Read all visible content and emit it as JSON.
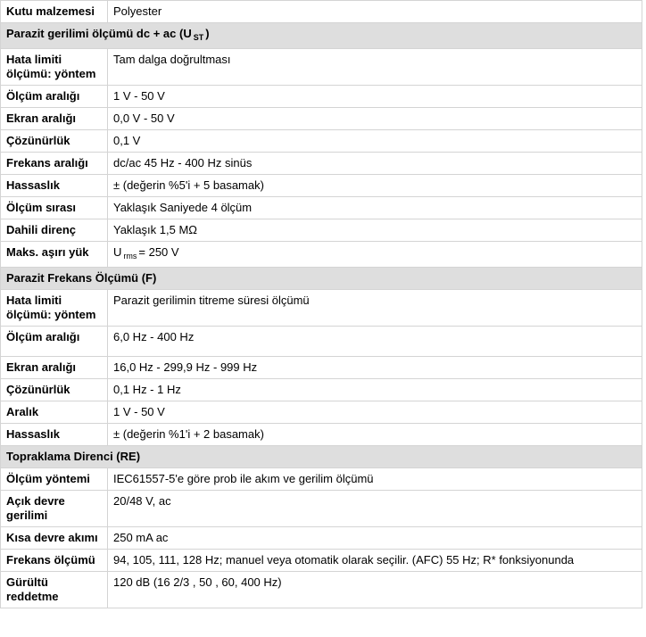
{
  "intro": {
    "label": "Kutu malzemesi",
    "value": "Polyester"
  },
  "sections": [
    {
      "title": {
        "text": "Parazit gerilimi ölçümü dc + ac (U",
        "sub": "ST",
        "tail": ")"
      },
      "rows": [
        {
          "label": "Hata limiti ölçümü: yöntem",
          "value": "Tam dalga doğrultması"
        },
        {
          "label": "Ölçüm aralığı",
          "value": "1 V - 50 V"
        },
        {
          "label": "Ekran aralığı",
          "value": "0,0 V - 50 V"
        },
        {
          "label": "Çözünürlük",
          "value": "0,1 V"
        },
        {
          "label": "Frekans aralığı",
          "value": "dc/ac 45 Hz - 400 Hz sinüs"
        },
        {
          "label": "Hassaslık",
          "value": "± (değerin %5'i + 5 basamak)"
        },
        {
          "label": "Ölçüm sırası",
          "value": "Yaklaşık Saniyede 4 ölçüm"
        },
        {
          "label": "Dahili direnç",
          "value": "Yaklaşık 1,5 MΩ"
        },
        {
          "label": "Maks. aşırı yük",
          "value": {
            "text": "U",
            "sub": "rms",
            "tail": "= 250 V"
          }
        }
      ]
    },
    {
      "title": {
        "text": "Parazit Frekans Ölçümü (F)"
      },
      "rows": [
        {
          "label": "Hata limiti ölçümü: yöntem",
          "value": "Parazit gerilimin titreme süresi ölçümü"
        },
        {
          "label": "Ölçüm aralığı",
          "value": "6,0 Hz - 400 Hz"
        },
        {
          "label": "Ekran aralığı",
          "value": "16,0 Hz - 299,9 Hz - 999 Hz"
        },
        {
          "label": "Çözünürlük",
          "value": "0,1 Hz - 1 Hz"
        },
        {
          "label": "Aralık",
          "value": "1 V - 50 V"
        },
        {
          "label": "Hassaslık",
          "value": "± (değerin %1'i + 2 basamak)"
        }
      ]
    },
    {
      "title": {
        "text": "Topraklama Direnci (RE)"
      },
      "rows": [
        {
          "label": "Ölçüm yöntemi",
          "value": "IEC61557-5'e göre prob ile akım ve gerilim ölçümü"
        },
        {
          "label": "Açık devre gerilimi",
          "value": "20/48 V, ac"
        },
        {
          "label": "Kısa devre akımı",
          "value": "250 mA ac"
        },
        {
          "label": "Frekans ölçümü",
          "value": "94, 105, 111, 128 Hz; manuel veya otomatik olarak seçilir. (AFC) 55 Hz; R* fonksiyonunda"
        },
        {
          "label": "Gürültü reddetme",
          "value": "120 dB (16 2/3 , 50 , 60, 400 Hz)"
        }
      ]
    }
  ]
}
